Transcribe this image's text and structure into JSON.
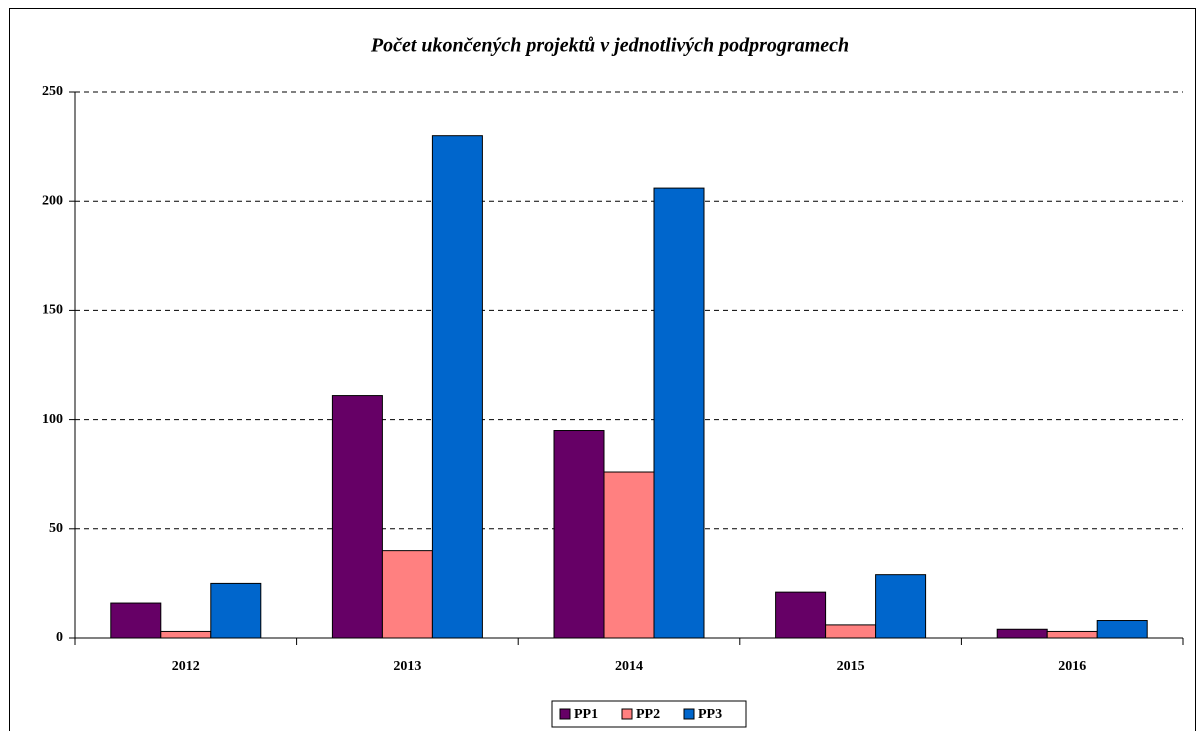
{
  "chart_data": {
    "type": "bar",
    "title": "Počet ukončených projektů v jednotlivých podprogramech",
    "categories": [
      "2012",
      "2013",
      "2014",
      "2015",
      "2016"
    ],
    "series": [
      {
        "name": "PP1",
        "color": "#660066",
        "values": [
          16,
          111,
          95,
          21,
          4
        ]
      },
      {
        "name": "PP2",
        "color": "#ff8080",
        "values": [
          3,
          40,
          76,
          6,
          3
        ]
      },
      {
        "name": "PP3",
        "color": "#0066cc",
        "values": [
          25,
          230,
          206,
          29,
          8
        ]
      }
    ],
    "ylim": [
      0,
      250
    ],
    "yticks": [
      0,
      50,
      100,
      150,
      200,
      250
    ],
    "grid": true,
    "legend": "bottom"
  }
}
